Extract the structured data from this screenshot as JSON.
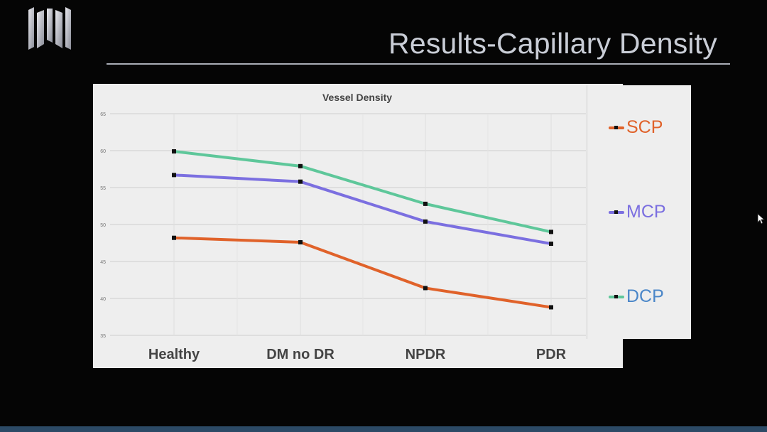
{
  "slide": {
    "title": "Results-Capillary Density"
  },
  "colors": {
    "background": "#050505",
    "title_text": "#c9cdd6",
    "bottom_bar": "#2c4a66"
  },
  "chart_data": {
    "type": "line",
    "title": "Vessel Density",
    "xlabel": "",
    "ylabel": "",
    "categories": [
      "Healthy",
      "DM no DR",
      "NPDR",
      "PDR"
    ],
    "ylim": [
      35,
      65
    ],
    "yticks": [
      35,
      40,
      45,
      50,
      55,
      60,
      65
    ],
    "grid": true,
    "legend_position": "right",
    "series": [
      {
        "name": "SCP",
        "color": "#e0622a",
        "values": [
          48.2,
          47.6,
          41.4,
          38.8
        ]
      },
      {
        "name": "MCP",
        "color": "#7b6fe0",
        "values": [
          56.7,
          55.8,
          50.4,
          47.4
        ]
      },
      {
        "name": "DCP",
        "color": "#5ec79a",
        "values": [
          59.9,
          57.9,
          52.8,
          49.0
        ]
      }
    ]
  }
}
